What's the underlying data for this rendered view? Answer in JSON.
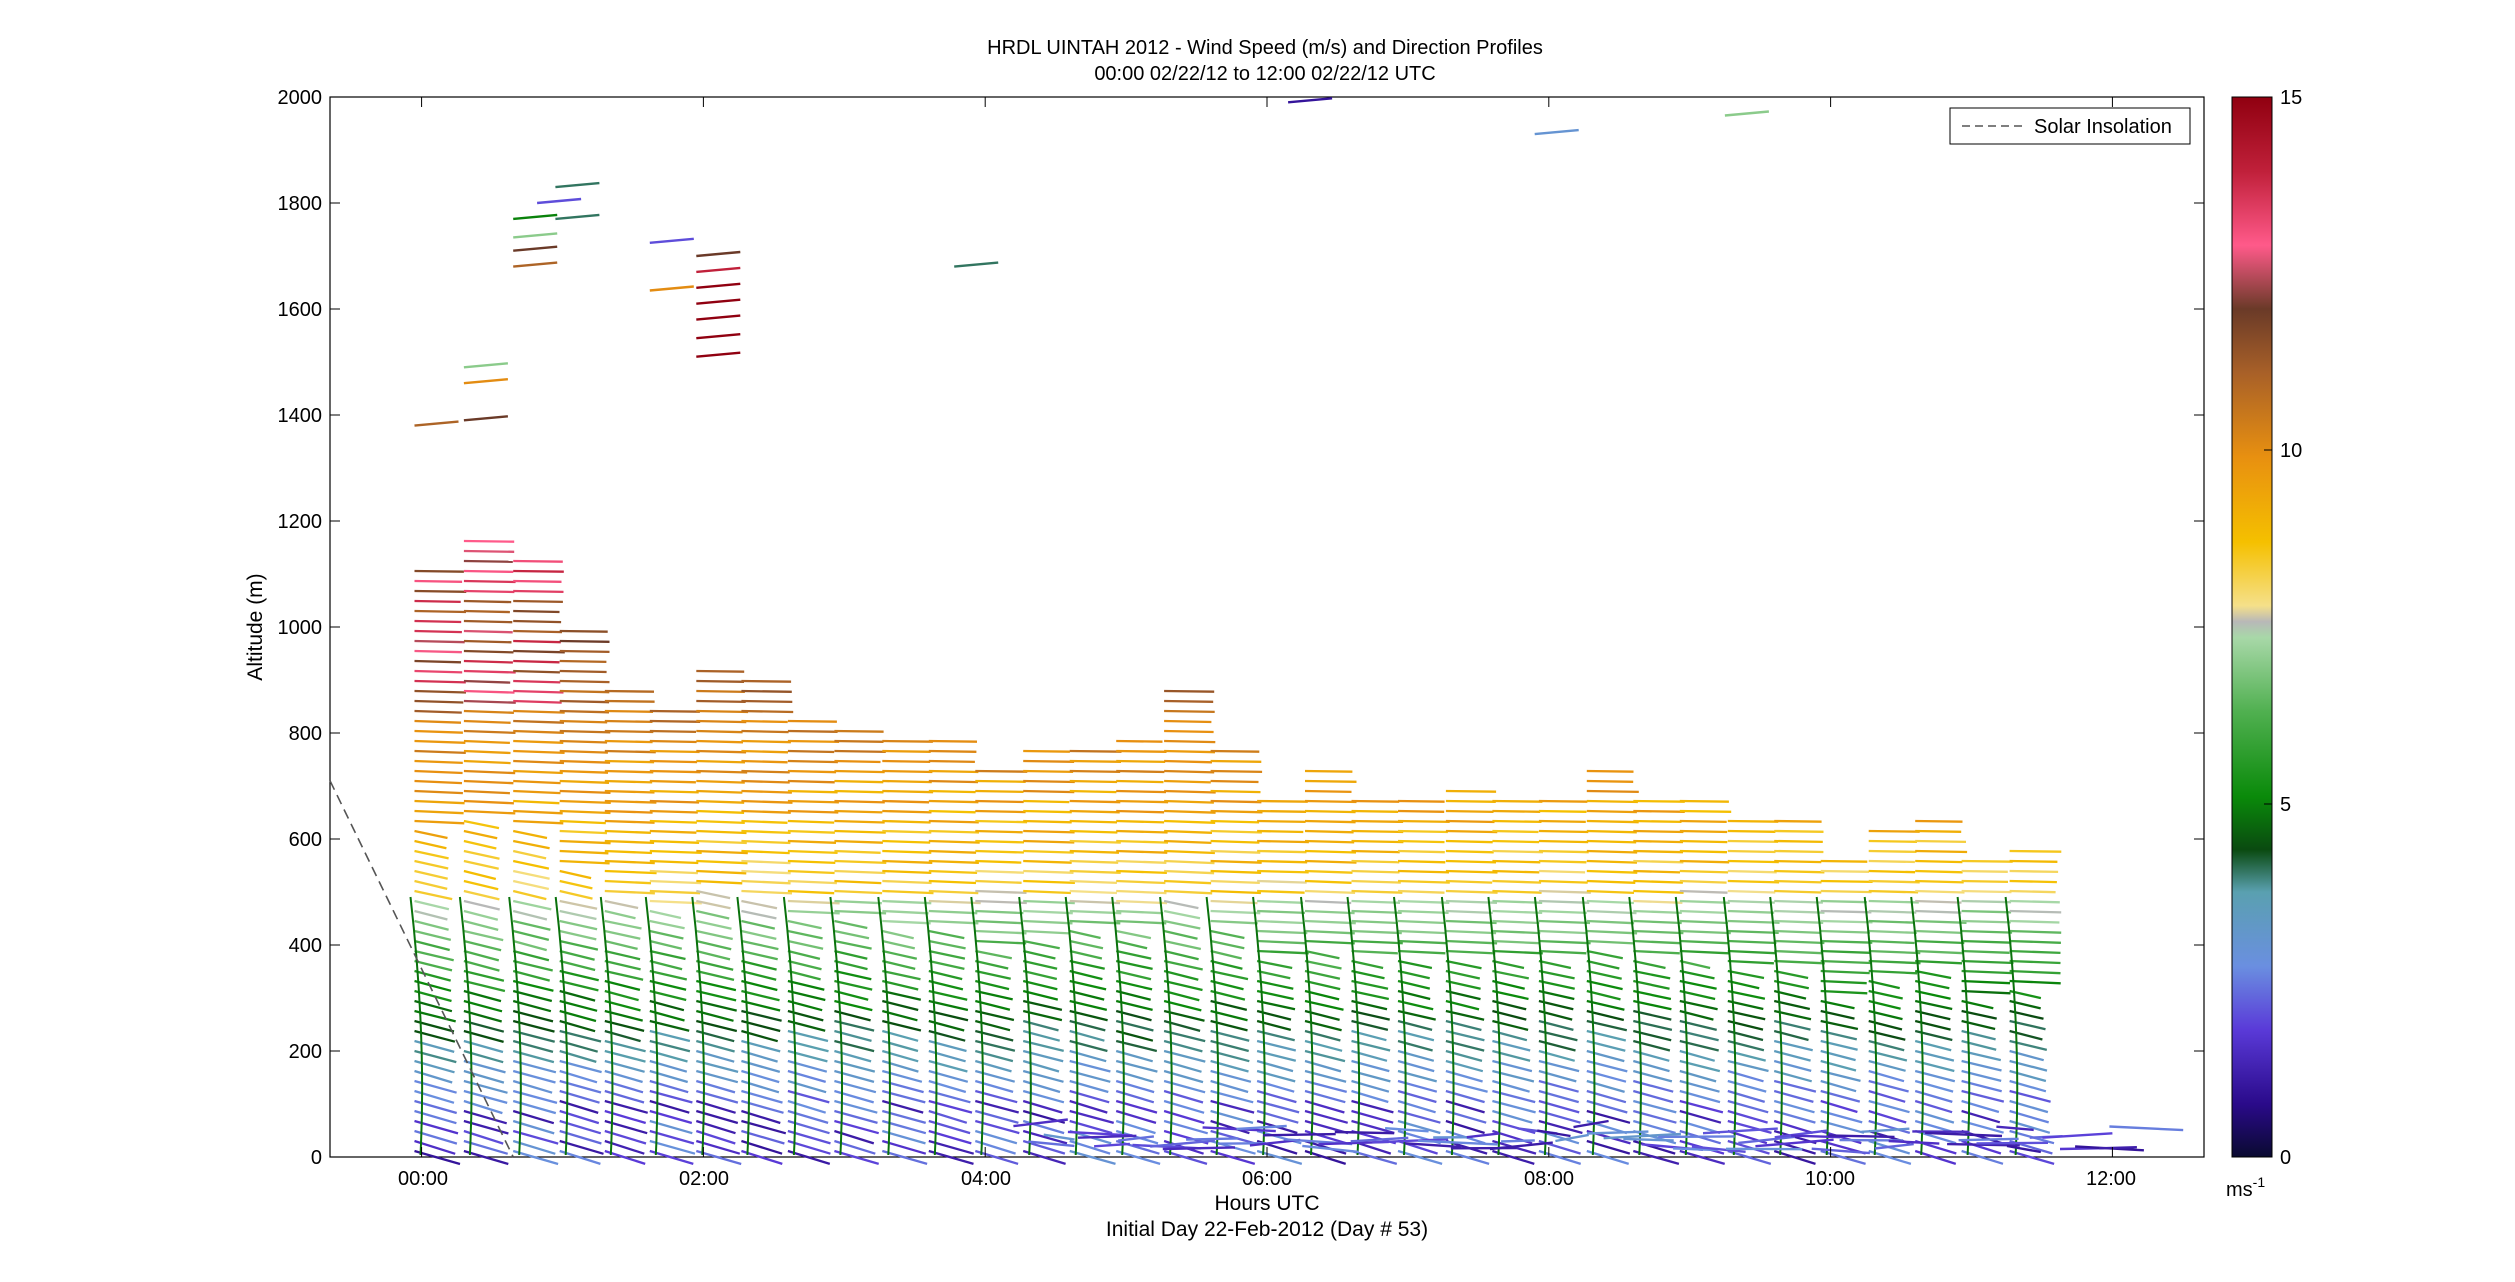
{
  "chart_data": {
    "type": "wind-barb-profile",
    "title": "HRDL UINTAH 2012 - Wind Speed (m/s) and Direction Profiles",
    "subtitle": "00:00 02/22/12 to 12:00 02/22/12  UTC",
    "xlabel": "Hours UTC",
    "ylabel": "Altitude (m)",
    "footer": "Initial Day 22-Feb-2012 (Day # 53)",
    "x_ticks": [
      {
        "hour": 0,
        "label": "00:00"
      },
      {
        "hour": 2,
        "label": "02:00"
      },
      {
        "hour": 4,
        "label": "04:00"
      },
      {
        "hour": 6,
        "label": "06:00"
      },
      {
        "hour": 8,
        "label": "08:00"
      },
      {
        "hour": 10,
        "label": "10:00"
      },
      {
        "hour": 12,
        "label": "12:00"
      }
    ],
    "xlim": [
      -0.65,
      12.65
    ],
    "y_ticks": [
      "0",
      "200",
      "400",
      "600",
      "800",
      "1000",
      "1200",
      "1400",
      "1600",
      "1800",
      "2000"
    ],
    "ylim": [
      0,
      2000
    ],
    "legend": {
      "label": "Solar Insolation",
      "placement": "top-right"
    },
    "colorbar": {
      "unit_base": "ms",
      "unit_exp": "-1",
      "range": [
        0,
        15
      ],
      "tick_labels": [
        "0",
        "5",
        "10",
        "15"
      ]
    },
    "solar_insolation_line": {
      "x_hours": [
        -0.65,
        0.65
      ],
      "y_altitude": [
        710,
        0
      ]
    },
    "profiles": [
      {
        "hour": -0.05,
        "top": 1120
      },
      {
        "hour": 0.3,
        "top": 1180
      },
      {
        "hour": 0.65,
        "top": 1130
      },
      {
        "hour": 0.98,
        "top": 1010
      },
      {
        "hour": 1.3,
        "top": 880
      },
      {
        "hour": 1.62,
        "top": 850
      },
      {
        "hour": 1.95,
        "top": 930
      },
      {
        "hour": 2.27,
        "top": 910
      },
      {
        "hour": 2.6,
        "top": 840
      },
      {
        "hour": 2.93,
        "top": 820
      },
      {
        "hour": 3.27,
        "top": 800
      },
      {
        "hour": 3.6,
        "top": 790
      },
      {
        "hour": 3.93,
        "top": 740
      },
      {
        "hour": 4.27,
        "top": 770
      },
      {
        "hour": 4.6,
        "top": 780
      },
      {
        "hour": 4.93,
        "top": 790
      },
      {
        "hour": 5.27,
        "top": 890
      },
      {
        "hour": 5.6,
        "top": 780
      },
      {
        "hour": 5.93,
        "top": 680
      },
      {
        "hour": 6.27,
        "top": 740
      },
      {
        "hour": 6.6,
        "top": 680
      },
      {
        "hour": 6.93,
        "top": 680
      },
      {
        "hour": 7.27,
        "top": 700
      },
      {
        "hour": 7.6,
        "top": 680
      },
      {
        "hour": 7.93,
        "top": 680
      },
      {
        "hour": 8.27,
        "top": 740
      },
      {
        "hour": 8.6,
        "top": 680
      },
      {
        "hour": 8.93,
        "top": 680
      },
      {
        "hour": 9.27,
        "top": 640
      },
      {
        "hour": 9.6,
        "top": 640
      },
      {
        "hour": 9.93,
        "top": 560
      },
      {
        "hour": 10.27,
        "top": 620
      },
      {
        "hour": 10.6,
        "top": 640
      },
      {
        "hour": 10.93,
        "top": 560
      },
      {
        "hour": 11.27,
        "top": 580
      }
    ],
    "upper_segments": [
      {
        "hour": -0.05,
        "alt": 1380,
        "speed": 11
      },
      {
        "hour": 0.3,
        "alt": 1390,
        "speed": 12
      },
      {
        "hour": 0.3,
        "alt": 1460,
        "speed": 10
      },
      {
        "hour": 0.3,
        "alt": 1490,
        "speed": 7
      },
      {
        "hour": 0.65,
        "alt": 1680,
        "speed": 11
      },
      {
        "hour": 0.65,
        "alt": 1710,
        "speed": 12
      },
      {
        "hour": 0.65,
        "alt": 1735,
        "speed": 7
      },
      {
        "hour": 0.65,
        "alt": 1770,
        "speed": 5
      },
      {
        "hour": 0.95,
        "alt": 1770,
        "speed": 4
      },
      {
        "hour": 0.95,
        "alt": 1830,
        "speed": 4
      },
      {
        "hour": 0.82,
        "alt": 1800,
        "speed": 2
      },
      {
        "hour": 1.62,
        "alt": 1635,
        "speed": 10
      },
      {
        "hour": 1.62,
        "alt": 1725,
        "speed": 2
      },
      {
        "hour": 1.95,
        "alt": 1700,
        "speed": 12
      },
      {
        "hour": 1.95,
        "alt": 1670,
        "speed": 14
      },
      {
        "hour": 1.95,
        "alt": 1640,
        "speed": 15
      },
      {
        "hour": 1.95,
        "alt": 1610,
        "speed": 15
      },
      {
        "hour": 1.95,
        "alt": 1580,
        "speed": 15
      },
      {
        "hour": 1.95,
        "alt": 1545,
        "speed": 15
      },
      {
        "hour": 1.95,
        "alt": 1510,
        "speed": 15
      },
      {
        "hour": 3.78,
        "alt": 1680,
        "speed": 4
      },
      {
        "hour": 6.15,
        "alt": 1990,
        "speed": 1
      },
      {
        "hour": 7.9,
        "alt": 1930,
        "speed": 3
      },
      {
        "hour": 9.25,
        "alt": 1965,
        "speed": 7
      }
    ]
  }
}
